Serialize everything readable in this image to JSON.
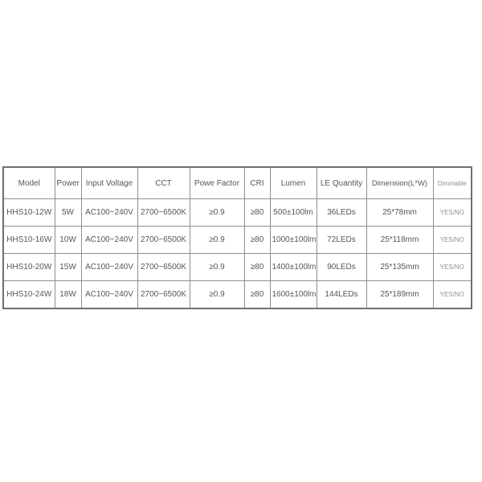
{
  "colors": {
    "background": "#ffffff",
    "outer_border": "#6f6f6f",
    "inner_border": "#8f8f8f",
    "cell_text": "#565656",
    "muted_text": "#8f8f8f"
  },
  "spec_table": {
    "columns": [
      "Model",
      "Power",
      "Input Voltage",
      "CCT",
      "Powe Factor",
      "CRI",
      "Lumen",
      "LE Quantity",
      "Dimension(L*W)",
      "Dimmable"
    ],
    "rows": [
      [
        "HHS10-12W",
        "5W",
        "AC100~240V",
        "2700~6500K",
        "≥0.9",
        "≥80",
        "500±100lm",
        "36LEDs",
        "25*78mm",
        "YES/NO"
      ],
      [
        "HHS10-16W",
        "10W",
        "AC100~240V",
        "2700~6500K",
        "≥0.9",
        "≥80",
        "1000±100lm",
        "72LEDs",
        "25*118mm",
        "YES/NO"
      ],
      [
        "HHS10-20W",
        "15W",
        "AC100~240V",
        "2700~6500K",
        "≥0.9",
        "≥80",
        "1400±100lm",
        "90LEDs",
        "25*135mm",
        "YES/NO"
      ],
      [
        "HHS10-24W",
        "18W",
        "AC100~240V",
        "2700~6500K",
        "≥0.9",
        "≥80",
        "1600±100lm",
        "144LEDs",
        "25*189mm",
        "YES/NO"
      ]
    ]
  }
}
